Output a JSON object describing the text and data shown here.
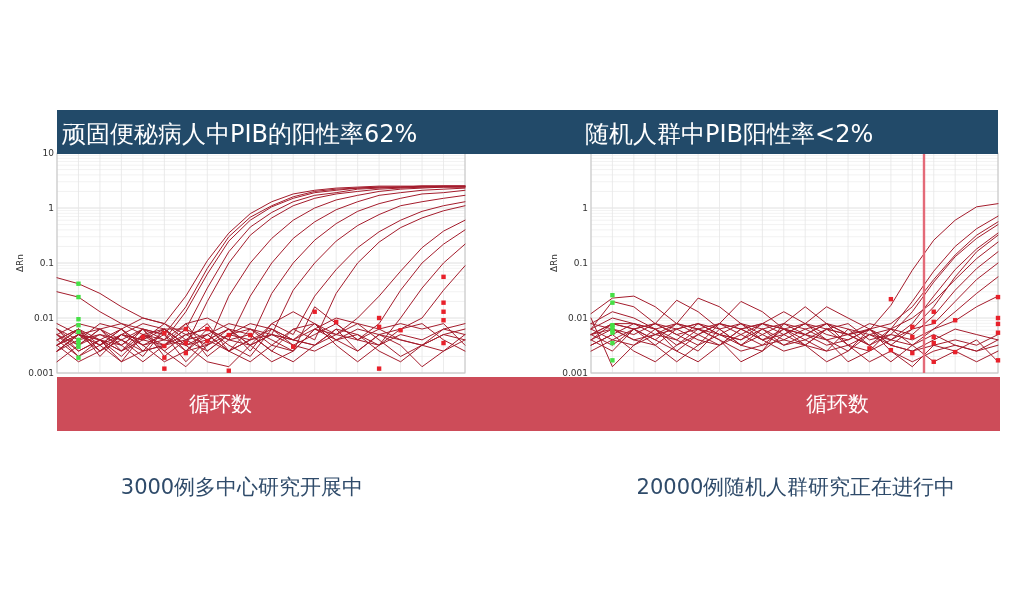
{
  "chart_data": [
    {
      "type": "line",
      "title": "顽固便秘病人中PIB的阳性率62%",
      "xlabel": "循环数",
      "ylabel": "ΔRn",
      "annotations": [
        "3000例多中心研究开展中"
      ],
      "categories": [
        null,
        null,
        null,
        null,
        null,
        null,
        null,
        null,
        null,
        null,
        null,
        null,
        null,
        null,
        null,
        null,
        null,
        null,
        null,
        null
      ],
      "ylim": [
        0.001,
        10
      ],
      "yticks": [
        10,
        1,
        0.1,
        0.01,
        0.001
      ],
      "log": true,
      "grid": true,
      "series": [
        {
          "color": "#a41c2c",
          "values": [
            0.005,
            0.0032,
            0.0063,
            0.0025,
            0.004,
            0.0079,
            0.025,
            0.11,
            0.35,
            0.79,
            1.3,
            1.8,
            2.1,
            2.3,
            2.4,
            2.5,
            2.5,
            2.5,
            2.5,
            2.5
          ]
        },
        {
          "color": "#a41c2c",
          "values": [
            0.004,
            0.0063,
            0.002,
            0.005,
            0.0032,
            0.004,
            0.013,
            0.063,
            0.25,
            0.6,
            1.05,
            1.5,
            1.9,
            2.1,
            2.3,
            2.4,
            2.4,
            2.5,
            2.5,
            2.5
          ]
        },
        {
          "color": "#a41c2c",
          "values": [
            0.0032,
            0.005,
            0.004,
            0.0025,
            0.0063,
            0.005,
            0.016,
            0.08,
            0.3,
            0.68,
            1.1,
            1.6,
            2.0,
            2.2,
            2.3,
            2.4,
            2.4,
            2.5,
            2.5,
            2.5
          ]
        },
        {
          "color": "#a41c2c",
          "values": [
            0.0025,
            0.005,
            0.0032,
            0.0063,
            0.0025,
            0.0032,
            0.0063,
            0.035,
            0.16,
            0.45,
            0.83,
            1.3,
            1.7,
            1.9,
            2.2,
            2.3,
            2.4,
            2.4,
            2.5,
            2.5
          ]
        },
        {
          "color": "#a41c2c",
          "values": [
            0.0063,
            0.0025,
            0.004,
            0.002,
            0.005,
            0.0063,
            0.0032,
            0.02,
            0.1,
            0.32,
            0.66,
            1.1,
            1.5,
            1.8,
            2.0,
            2.2,
            2.3,
            2.4,
            2.4,
            2.4
          ]
        },
        {
          "color": "#a41c2c",
          "values": [
            0.0032,
            0.005,
            0.0025,
            0.004,
            0.0063,
            0.0025,
            0.005,
            0.0032,
            0.025,
            0.1,
            0.28,
            0.6,
            1.0,
            1.4,
            1.7,
            2.0,
            2.2,
            2.3,
            2.4,
            2.4
          ]
        },
        {
          "color": "#a41c2c",
          "values": [
            0.005,
            0.002,
            0.004,
            0.0063,
            0.0032,
            0.005,
            0.0025,
            0.0063,
            0.004,
            0.025,
            0.1,
            0.28,
            0.56,
            0.93,
            1.3,
            1.7,
            1.9,
            2.1,
            2.2,
            2.3
          ]
        },
        {
          "color": "#a41c2c",
          "values": [
            0.004,
            0.0063,
            0.0032,
            0.0016,
            0.005,
            0.004,
            0.0079,
            0.0025,
            0.005,
            0.004,
            0.028,
            0.1,
            0.26,
            0.52,
            0.87,
            1.2,
            1.5,
            1.8,
            1.9,
            2.1
          ]
        },
        {
          "color": "#a41c2c",
          "values": [
            0.0025,
            0.004,
            0.005,
            0.0032,
            0.0063,
            0.002,
            0.004,
            0.005,
            0.0025,
            0.0063,
            0.005,
            0.032,
            0.1,
            0.25,
            0.48,
            0.76,
            1.1,
            1.3,
            1.5,
            1.7
          ]
        },
        {
          "color": "#a41c2c",
          "values": [
            0.0063,
            0.0032,
            0.005,
            0.004,
            0.002,
            0.0063,
            0.0032,
            0.004,
            0.0063,
            0.0025,
            0.0079,
            0.005,
            0.025,
            0.076,
            0.19,
            0.37,
            0.6,
            0.87,
            1.1,
            1.3
          ]
        },
        {
          "color": "#a41c2c",
          "values": [
            0.0032,
            0.0063,
            0.0025,
            0.005,
            0.004,
            0.0032,
            0.0063,
            0.002,
            0.004,
            0.005,
            0.0025,
            0.0063,
            0.004,
            0.028,
            0.1,
            0.24,
            0.44,
            0.66,
            0.89,
            1.1
          ]
        },
        {
          "color": "#a41c2c",
          "values": [
            0.005,
            0.0025,
            0.004,
            0.0032,
            0.0063,
            0.005,
            0.0016,
            0.004,
            0.0063,
            0.0032,
            0.005,
            0.004,
            0.0079,
            0.005,
            0.01,
            0.025,
            0.071,
            0.19,
            0.38,
            0.6
          ]
        },
        {
          "color": "#a41c2c",
          "values": [
            0.0025,
            0.005,
            0.0063,
            0.004,
            0.0025,
            0.0032,
            0.005,
            0.0063,
            0.0032,
            0.002,
            0.0063,
            0.0032,
            0.005,
            0.0079,
            0.004,
            0.0079,
            0.032,
            0.1,
            0.22,
            0.4
          ]
        },
        {
          "color": "#a41c2c",
          "values": [
            0.004,
            0.002,
            0.0032,
            0.005,
            0.004,
            0.0063,
            0.0025,
            0.0032,
            0.005,
            0.0063,
            0.004,
            0.0025,
            0.0063,
            0.004,
            0.005,
            0.0032,
            0.01,
            0.035,
            0.1,
            0.22
          ]
        },
        {
          "color": "#a41c2c",
          "values": [
            0.0032,
            0.0063,
            0.004,
            0.0025,
            0.005,
            0.0032,
            0.004,
            0.0079,
            0.0025,
            0.004,
            0.0063,
            0.004,
            0.0032,
            0.0063,
            0.0025,
            0.005,
            0.0063,
            0.01,
            0.032,
            0.089
          ]
        },
        {
          "color": "#a41c2c",
          "values": [
            0.054,
            0.042,
            0.028,
            0.016,
            0.01,
            0.0079,
            0.005,
            0.0063,
            0.004,
            0.0032,
            0.005,
            0.004,
            0.0063,
            0.005,
            0.004,
            0.0032,
            0.005,
            0.004,
            0.0063,
            0.005
          ]
        },
        {
          "color": "#a41c2c",
          "values": [
            0.03,
            0.024,
            0.013,
            0.0079,
            0.0063,
            0.004,
            0.0032,
            0.005,
            0.0025,
            0.004,
            0.005,
            0.0032,
            0.0025,
            0.004,
            0.0063,
            0.005,
            0.004,
            0.0032,
            0.0025,
            0.004
          ]
        },
        {
          "color": "#a41c2c",
          "values": [
            0.0079,
            0.005,
            0.0032,
            0.0063,
            0.01,
            0.0079,
            0.004,
            0.0025,
            0.005,
            0.0079,
            0.0063,
            0.004,
            0.0032,
            0.005,
            0.0079,
            0.0063,
            0.004,
            0.0032,
            0.005,
            0.0063
          ]
        },
        {
          "color": "#a41c2c",
          "values": [
            0.0016,
            0.0032,
            0.0063,
            0.0079,
            0.005,
            0.0025,
            0.0013,
            0.0032,
            0.0063,
            0.005,
            0.0025,
            0.0016,
            0.0032,
            0.0063,
            0.005,
            0.0025,
            0.0016,
            0.0032,
            0.005,
            0.004
          ]
        },
        {
          "color": "#a41c2c",
          "values": [
            0.005,
            0.0079,
            0.0063,
            0.0032,
            0.0016,
            0.0032,
            0.0079,
            0.01,
            0.0063,
            0.0032,
            0.0016,
            0.0025,
            0.0063,
            0.01,
            0.0079,
            0.004,
            0.002,
            0.0032,
            0.0063,
            0.0079
          ]
        },
        {
          "color": "#a41c2c",
          "values": [
            0.0032,
            0.0016,
            0.0025,
            0.005,
            0.0079,
            0.0063,
            0.0032,
            0.0016,
            0.0013,
            0.0032,
            0.0079,
            0.013,
            0.0079,
            0.0032,
            0.0016,
            0.0032,
            0.0063,
            0.0079,
            0.004,
            0.0025
          ]
        },
        {
          "color": "#a41c2c",
          "values": [
            0.0063,
            0.004,
            0.0079,
            0.0063,
            0.0032,
            0.0016,
            0.0025,
            0.005,
            0.0079,
            0.0063,
            0.0032,
            0.0025,
            0.016,
            0.0079,
            0.004,
            0.0063,
            0.0079,
            0.0063,
            0.0079,
            0.0032
          ]
        },
        {
          "color": "#a41c2c",
          "values": [
            0.0025,
            0.005,
            0.004,
            0.0016,
            0.0025,
            0.0063,
            0.0063,
            0.004,
            0.0025,
            0.0016,
            0.0032,
            0.0063,
            0.0079,
            0.004,
            0.0025,
            0.005,
            0.0032,
            0.0013,
            0.0025,
            0.005
          ]
        },
        {
          "type": "scatter",
          "marker": "square",
          "color": "#e8212b",
          "values": [
            null,
            null,
            null,
            null,
            0.0045,
            0.0053,
            0.0063,
            0.0063,
            0.0049,
            0.0049,
            null,
            0.003,
            0.013,
            0.0085,
            null,
            0.01,
            0.006,
            null,
            0.056,
            null
          ]
        },
        {
          "type": "scatter",
          "marker": "square",
          "color": "#e8212b",
          "values": [
            null,
            null,
            null,
            null,
            null,
            0.0031,
            0.0023,
            0.0038,
            0.0011,
            null,
            null,
            null,
            null,
            null,
            null,
            0.0069,
            null,
            null,
            0.019,
            null
          ]
        },
        {
          "type": "scatter",
          "marker": "square",
          "color": "#e8212b",
          "values": [
            null,
            null,
            null,
            null,
            null,
            0.0019,
            0.0035,
            null,
            null,
            null,
            null,
            null,
            null,
            null,
            null,
            0.0012,
            null,
            null,
            0.013,
            null
          ]
        },
        {
          "type": "scatter",
          "marker": "square",
          "color": "#e8212b",
          "values": [
            null,
            null,
            null,
            null,
            null,
            0.0012,
            null,
            null,
            null,
            null,
            null,
            null,
            null,
            null,
            null,
            null,
            null,
            null,
            0.0091,
            null
          ]
        },
        {
          "type": "scatter",
          "marker": "square",
          "color": "#e8212b",
          "values": [
            null,
            null,
            null,
            null,
            null,
            null,
            null,
            null,
            null,
            null,
            null,
            null,
            null,
            null,
            null,
            null,
            null,
            null,
            0.0035,
            null
          ]
        },
        {
          "type": "scatter",
          "marker": "square",
          "color": "#46e046",
          "values": [
            null,
            0.042,
            null,
            null,
            null,
            null,
            null,
            null,
            null,
            null,
            null,
            null,
            null,
            null,
            null,
            null,
            null,
            null,
            null,
            null
          ]
        },
        {
          "type": "scatter",
          "marker": "square",
          "color": "#46e046",
          "values": [
            null,
            0.024,
            null,
            null,
            null,
            null,
            null,
            null,
            null,
            null,
            null,
            null,
            null,
            null,
            null,
            null,
            null,
            null,
            null,
            null
          ]
        },
        {
          "type": "scatter",
          "marker": "square",
          "color": "#46e046",
          "values": [
            null,
            0.0095,
            null,
            null,
            null,
            null,
            null,
            null,
            null,
            null,
            null,
            null,
            null,
            null,
            null,
            null,
            null,
            null,
            null,
            null
          ]
        },
        {
          "type": "scatter",
          "marker": "square",
          "color": "#46e046",
          "values": [
            null,
            0.0074,
            null,
            null,
            null,
            null,
            null,
            null,
            null,
            null,
            null,
            null,
            null,
            null,
            null,
            null,
            null,
            null,
            null,
            null
          ]
        },
        {
          "type": "scatter",
          "marker": "square",
          "color": "#46e046",
          "values": [
            null,
            0.0056,
            null,
            null,
            null,
            null,
            null,
            null,
            null,
            null,
            null,
            null,
            null,
            null,
            null,
            null,
            null,
            null,
            null,
            null
          ]
        },
        {
          "type": "scatter",
          "marker": "square",
          "color": "#46e046",
          "values": [
            null,
            0.004,
            null,
            null,
            null,
            null,
            null,
            null,
            null,
            null,
            null,
            null,
            null,
            null,
            null,
            null,
            null,
            null,
            null,
            null
          ]
        },
        {
          "type": "scatter",
          "marker": "square",
          "color": "#46e046",
          "values": [
            null,
            0.0035,
            null,
            null,
            null,
            null,
            null,
            null,
            null,
            null,
            null,
            null,
            null,
            null,
            null,
            null,
            null,
            null,
            null,
            null
          ]
        },
        {
          "type": "scatter",
          "marker": "square",
          "color": "#46e046",
          "values": [
            null,
            0.003,
            null,
            null,
            null,
            null,
            null,
            null,
            null,
            null,
            null,
            null,
            null,
            null,
            null,
            null,
            null,
            null,
            null,
            null
          ]
        },
        {
          "type": "scatter",
          "marker": "square",
          "color": "#46e046",
          "values": [
            null,
            0.0019,
            null,
            null,
            null,
            null,
            null,
            null,
            null,
            null,
            null,
            null,
            null,
            null,
            null,
            null,
            null,
            null,
            null,
            null
          ]
        }
      ]
    },
    {
      "type": "line",
      "title": "随机人群中PIB阳性率<2%",
      "xlabel": "循环数",
      "ylabel": "ΔRn",
      "annotations": [
        "20000例随机人群研究正在进行中"
      ],
      "categories": [
        null,
        null,
        null,
        null,
        null,
        null,
        null,
        null,
        null,
        null,
        null,
        null,
        null,
        null,
        null,
        null,
        null,
        null,
        null,
        null
      ],
      "ylim": [
        0.001,
        10
      ],
      "yticks": [
        1,
        0.1,
        0.01,
        0.001
      ],
      "log": true,
      "grid": true,
      "series": [
        {
          "color": "#a41c2c",
          "values": [
            0.005,
            0.0079,
            0.0063,
            0.004,
            0.0079,
            0.0063,
            0.005,
            0.0032,
            0.0063,
            0.0079,
            0.005,
            0.004,
            0.005,
            0.006,
            0.017,
            0.074,
            0.26,
            0.6,
            1.05,
            1.2
          ]
        },
        {
          "color": "#a41c2c",
          "values": [
            0.0063,
            0.01,
            0.0079,
            0.005,
            0.004,
            0.0079,
            0.0063,
            0.0032,
            0.005,
            0.0079,
            0.0063,
            0.004,
            0.0025,
            0.005,
            0.0063,
            0.02,
            0.071,
            0.2,
            0.42,
            0.71
          ]
        },
        {
          "color": "#a41c2c",
          "values": [
            0.004,
            0.0079,
            0.0063,
            0.0079,
            0.005,
            0.0032,
            0.005,
            0.0079,
            0.0063,
            0.004,
            0.0032,
            0.0063,
            0.0079,
            0.004,
            0.005,
            0.013,
            0.045,
            0.13,
            0.28,
            0.5
          ]
        },
        {
          "color": "#a41c2c",
          "values": [
            0.0079,
            0.013,
            0.01,
            0.0063,
            0.0032,
            0.005,
            0.0079,
            0.0063,
            0.004,
            0.005,
            0.0079,
            0.0063,
            0.0032,
            0.0025,
            0.004,
            0.0079,
            0.025,
            0.076,
            0.18,
            0.35
          ]
        },
        {
          "color": "#a41c2c",
          "values": [
            0.005,
            0.0063,
            0.004,
            0.0032,
            0.0063,
            0.0079,
            0.005,
            0.004,
            0.0063,
            0.0032,
            0.005,
            0.0079,
            0.005,
            0.0032,
            0.0063,
            0.01,
            0.02,
            0.05,
            0.12,
            0.24
          ]
        },
        {
          "color": "#a41c2c",
          "values": [
            0.0032,
            0.005,
            0.0079,
            0.0063,
            0.004,
            0.0025,
            0.0063,
            0.0079,
            0.005,
            0.0032,
            0.004,
            0.0063,
            0.005,
            0.0079,
            0.0063,
            0.005,
            0.011,
            0.032,
            0.079,
            0.16
          ]
        },
        {
          "color": "#a41c2c",
          "values": [
            0.0063,
            0.004,
            0.0032,
            0.005,
            0.0079,
            0.0063,
            0.004,
            0.0025,
            0.0032,
            0.0063,
            0.0079,
            0.005,
            0.004,
            0.0063,
            0.0032,
            0.0063,
            0.0079,
            0.02,
            0.05,
            0.1
          ]
        },
        {
          "color": "#a41c2c",
          "values": [
            0.004,
            0.0063,
            0.005,
            0.0079,
            0.0063,
            0.004,
            0.0032,
            0.0063,
            0.0079,
            0.005,
            0.0032,
            0.0025,
            0.0063,
            0.005,
            0.004,
            0.0032,
            0.0063,
            0.013,
            0.028,
            0.056
          ]
        },
        {
          "color": "#a41c2c",
          "values": [
            0.005,
            0.0032,
            0.0063,
            0.004,
            0.0025,
            0.005,
            0.0079,
            0.0063,
            0.004,
            0.0063,
            0.005,
            0.0079,
            0.0063,
            0.0032,
            0.005,
            0.004,
            0.0063,
            0.0089,
            0.016,
            0.025
          ]
        },
        {
          "color": "#a41c2c",
          "values": [
            0.0079,
            0.0063,
            0.004,
            0.005,
            0.0063,
            0.0079,
            0.005,
            0.004,
            0.0079,
            0.0063,
            0.005,
            0.0032,
            0.004,
            0.0063,
            0.0079,
            0.016,
            0.05,
            0.14,
            0.32,
            0.56
          ]
        },
        {
          "color": "#a41c2c",
          "values": [
            0.0025,
            0.004,
            0.0063,
            0.0079,
            0.005,
            0.0063,
            0.0079,
            0.005,
            0.0032,
            0.004,
            0.0063,
            0.0079,
            0.005,
            0.0063,
            0.004,
            0.0063,
            0.016,
            0.056,
            0.16,
            0.32
          ]
        },
        {
          "color": "#a41c2c",
          "values": [
            0.012,
            0.023,
            0.025,
            0.016,
            0.0079,
            0.005,
            0.0032,
            0.005,
            0.0079,
            0.0063,
            0.004,
            0.0025,
            0.0032,
            0.005,
            0.0032,
            0.0025,
            0.004,
            0.0063,
            0.005,
            0.004
          ]
        },
        {
          "color": "#a41c2c",
          "values": [
            0.01,
            0.0013,
            0.0032,
            0.0063,
            0.0079,
            0.023,
            0.016,
            0.0079,
            0.004,
            0.0025,
            0.0032,
            0.0063,
            0.005,
            0.0032,
            0.0016,
            0.0032,
            0.005,
            0.0032,
            0.0025,
            0.004
          ]
        },
        {
          "color": "#a41c2c",
          "values": [
            0.0063,
            0.02,
            0.016,
            0.0079,
            0.021,
            0.013,
            0.0063,
            0.0032,
            0.0025,
            0.005,
            0.0079,
            0.016,
            0.01,
            0.0063,
            0.0032,
            0.0025,
            0.0032,
            0.004,
            0.0032,
            0.005
          ]
        },
        {
          "color": "#a41c2c",
          "values": [
            0.004,
            0.0025,
            0.0063,
            0.0032,
            0.0016,
            0.0032,
            0.0079,
            0.02,
            0.013,
            0.0063,
            0.0032,
            0.0016,
            0.0025,
            0.0063,
            0.0025,
            0.0013,
            0.0032,
            0.0025,
            0.0016,
            0.0025
          ]
        },
        {
          "color": "#a41c2c",
          "values": [
            0.0032,
            0.005,
            0.0025,
            0.0016,
            0.0032,
            0.0063,
            0.004,
            0.0016,
            0.0025,
            0.0079,
            0.016,
            0.0079,
            0.0032,
            0.0016,
            0.0025,
            0.0016,
            0.0025,
            0.0032,
            0.0025,
            0.0032
          ]
        },
        {
          "color": "#a41c2c",
          "values": [
            0.005,
            0.0079,
            0.0079,
            0.0063,
            0.0025,
            0.0016,
            0.0032,
            0.0063,
            0.0079,
            0.013,
            0.0079,
            0.004,
            0.0016,
            0.0025,
            0.0063,
            0.0032,
            0.0016,
            0.0025,
            0.004,
            0.0016
          ]
        },
        {
          "type": "scatter",
          "marker": "square",
          "color": "#e8212b",
          "values": [
            null,
            null,
            null,
            null,
            null,
            null,
            null,
            null,
            null,
            null,
            null,
            null,
            null,
            0.0028,
            0.022,
            0.0069,
            0.013,
            0.0091,
            null,
            0.024
          ]
        },
        {
          "type": "scatter",
          "marker": "square",
          "color": "#e8212b",
          "values": [
            null,
            null,
            null,
            null,
            null,
            null,
            null,
            null,
            null,
            null,
            null,
            null,
            null,
            null,
            0.0026,
            0.0045,
            0.0085,
            0.0024,
            null,
            0.01
          ]
        },
        {
          "type": "scatter",
          "marker": "square",
          "color": "#e8212b",
          "values": [
            null,
            null,
            null,
            null,
            null,
            null,
            null,
            null,
            null,
            null,
            null,
            null,
            null,
            null,
            null,
            0.0023,
            0.0045,
            null,
            null,
            0.0078
          ]
        },
        {
          "type": "scatter",
          "marker": "square",
          "color": "#e8212b",
          "values": [
            null,
            null,
            null,
            null,
            null,
            null,
            null,
            null,
            null,
            null,
            null,
            null,
            null,
            null,
            null,
            null,
            0.0035,
            null,
            null,
            0.0054
          ]
        },
        {
          "type": "scatter",
          "marker": "square",
          "color": "#e8212b",
          "values": [
            null,
            null,
            null,
            null,
            null,
            null,
            null,
            null,
            null,
            null,
            null,
            null,
            null,
            null,
            null,
            null,
            0.0016,
            null,
            null,
            0.0017
          ]
        },
        {
          "type": "scatter",
          "marker": "square",
          "color": "#46e046",
          "values": [
            null,
            0.026,
            null,
            null,
            null,
            null,
            null,
            null,
            null,
            null,
            null,
            null,
            null,
            null,
            null,
            null,
            null,
            null,
            null,
            null
          ]
        },
        {
          "type": "scatter",
          "marker": "square",
          "color": "#46e046",
          "values": [
            null,
            0.019,
            null,
            null,
            null,
            null,
            null,
            null,
            null,
            null,
            null,
            null,
            null,
            null,
            null,
            null,
            null,
            null,
            null,
            null
          ]
        },
        {
          "type": "scatter",
          "marker": "square",
          "color": "#46e046",
          "values": [
            null,
            0.0074,
            null,
            null,
            null,
            null,
            null,
            null,
            null,
            null,
            null,
            null,
            null,
            null,
            null,
            null,
            null,
            null,
            null,
            null
          ]
        },
        {
          "type": "scatter",
          "marker": "square",
          "color": "#46e046",
          "values": [
            null,
            0.0069,
            null,
            null,
            null,
            null,
            null,
            null,
            null,
            null,
            null,
            null,
            null,
            null,
            null,
            null,
            null,
            null,
            null,
            null
          ]
        },
        {
          "type": "scatter",
          "marker": "square",
          "color": "#46e046",
          "values": [
            null,
            0.006,
            null,
            null,
            null,
            null,
            null,
            null,
            null,
            null,
            null,
            null,
            null,
            null,
            null,
            null,
            null,
            null,
            null,
            null
          ]
        },
        {
          "type": "scatter",
          "marker": "square",
          "color": "#46e046",
          "values": [
            null,
            0.0054,
            null,
            null,
            null,
            null,
            null,
            null,
            null,
            null,
            null,
            null,
            null,
            null,
            null,
            null,
            null,
            null,
            null,
            null
          ]
        },
        {
          "type": "scatter",
          "marker": "square",
          "color": "#46e046",
          "values": [
            null,
            0.0035,
            null,
            null,
            null,
            null,
            null,
            null,
            null,
            null,
            null,
            null,
            null,
            null,
            null,
            null,
            null,
            null,
            null,
            null
          ]
        },
        {
          "type": "scatter",
          "marker": "square",
          "color": "#46e046",
          "values": [
            null,
            0.0017,
            null,
            null,
            null,
            null,
            null,
            null,
            null,
            null,
            null,
            null,
            null,
            null,
            null,
            null,
            null,
            null,
            null,
            null
          ]
        }
      ]
    }
  ]
}
